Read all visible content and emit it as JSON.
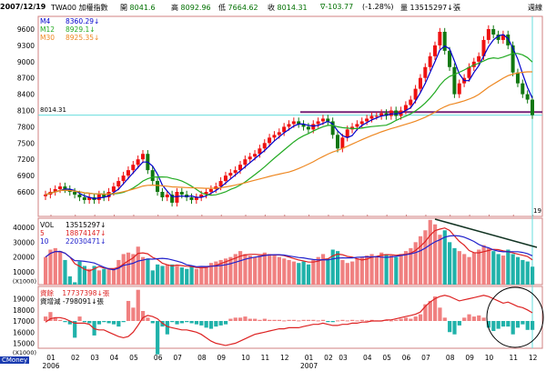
{
  "header": {
    "date": "2007/12/19",
    "symbol": "TWA00 加權指數",
    "open_label": "開",
    "open": "8041.6",
    "high_label": "高",
    "high": "8092.96",
    "low_label": "低",
    "low": "7664.62",
    "close_label": "收",
    "close": "8014.31",
    "change": "∇-103.77",
    "change_pct": "(-1.28%)",
    "vol_label": "量",
    "volume": "13515297↓張",
    "mode": "週線"
  },
  "price_legend": [
    {
      "name": "M4",
      "value": "8360.29↓",
      "color": "#0000cc"
    },
    {
      "name": "M12",
      "value": "8929.1↓",
      "color": "#22aa22"
    },
    {
      "name": "M30",
      "value": "8925.35↓",
      "color": "#ee8822"
    }
  ],
  "vol_legend": [
    {
      "name": "VOL",
      "value": "13515297↓",
      "color": "#000000"
    },
    {
      "name": "5",
      "value": "18874147↓",
      "color": "#dd2222"
    },
    {
      "name": "10",
      "value": "22030471↓",
      "color": "#2222cc"
    }
  ],
  "margin_legend": [
    {
      "name": "資餘",
      "value": "17737398↓張",
      "color": "#dd2222"
    },
    {
      "name": "資增減",
      "value": "-798091↓張",
      "color": "#000000"
    }
  ],
  "last_price_label": "8014.31",
  "cursor_label": "19",
  "brand": "CMoney",
  "colors": {
    "up": "#ee1111",
    "down": "#117711",
    "vol_up": "#f08080",
    "vol_down": "#20b2aa",
    "frame": "#d08080"
  },
  "chart_data": {
    "type": "candlestick",
    "months": [
      "01",
      "02",
      "03",
      "04",
      "05",
      "06",
      "07",
      "08",
      "09",
      "10",
      "11",
      "12",
      "01",
      "02",
      "03",
      "04",
      "05",
      "06",
      "07",
      "08",
      "09",
      "10",
      "11",
      "12"
    ],
    "weeks_per_month": [
      5,
      4,
      4,
      4,
      5,
      4,
      5,
      4,
      5,
      4,
      4,
      5,
      4,
      3,
      5,
      4,
      4,
      4,
      5,
      4,
      4,
      5,
      4,
      2
    ],
    "years": [
      "2006",
      "2007"
    ],
    "price_ticks": [
      6600,
      6900,
      7200,
      7500,
      7800,
      8100,
      8400,
      8700,
      9000,
      9300,
      9600
    ],
    "vol_ticks": [
      10000,
      20000,
      30000,
      40000
    ],
    "vol_unit": "(X1000)",
    "margin_ticks": [
      15000,
      16000,
      17000,
      18000,
      19000
    ],
    "margin_unit": "(X1000)",
    "close": [
      6550,
      6600,
      6650,
      6700,
      6650,
      6600,
      6550,
      6500,
      6450,
      6500,
      6450,
      6550,
      6500,
      6600,
      6700,
      6800,
      6900,
      7000,
      7100,
      7200,
      7300,
      7000,
      6800,
      6600,
      6500,
      6550,
      6400,
      6600,
      6550,
      6500,
      6450,
      6500,
      6550,
      6600,
      6650,
      6700,
      6800,
      6900,
      6950,
      7000,
      7100,
      7200,
      7250,
      7300,
      7400,
      7500,
      7600,
      7650,
      7700,
      7800,
      7850,
      7900,
      7850,
      7800,
      7750,
      7850,
      7900,
      7950,
      7900,
      7650,
      7400,
      7600,
      7750,
      7800,
      7850,
      7900,
      7950,
      8000,
      8000,
      8050,
      8000,
      8100,
      8000,
      8100,
      8200,
      8300,
      8500,
      8700,
      8900,
      9100,
      9300,
      9550,
      9200,
      8900,
      8400,
      8600,
      8700,
      8900,
      9000,
      9100,
      9400,
      9600,
      9500,
      9400,
      9500,
      9300,
      8800,
      8600,
      8400,
      8300,
      8014.31
    ],
    "volume": [
      20000,
      25000,
      26000,
      24000,
      18000,
      7000,
      3000,
      17000,
      14000,
      12000,
      14000,
      11000,
      12000,
      12000,
      12000,
      18000,
      22000,
      23000,
      22000,
      27000,
      20000,
      19000,
      11000,
      15000,
      14000,
      15000,
      15000,
      14000,
      13000,
      12000,
      14000,
      12000,
      13000,
      14000,
      16000,
      17000,
      18000,
      19000,
      20000,
      22000,
      24000,
      22000,
      21000,
      20000,
      21000,
      23000,
      22000,
      21000,
      20000,
      19000,
      18000,
      17000,
      16000,
      17000,
      15000,
      18000,
      20000,
      22000,
      19000,
      25000,
      24000,
      18000,
      16000,
      17000,
      19000,
      20000,
      21000,
      22000,
      20000,
      23000,
      22000,
      21000,
      20000,
      22000,
      24000,
      26000,
      30000,
      34000,
      38000,
      45000,
      42000,
      35000,
      38000,
      30000,
      26000,
      24000,
      22000,
      20000,
      23000,
      25000,
      28000,
      26000,
      24000,
      22000,
      21000,
      25000,
      22000,
      20000,
      18000,
      17000,
      13515
    ],
    "margin_balance": [
      16900,
      17200,
      17300,
      17300,
      17200,
      17000,
      16800,
      16800,
      16800,
      16700,
      16300,
      16200,
      16200,
      16000,
      15800,
      15600,
      15500,
      15600,
      16000,
      16600,
      17300,
      17500,
      17400,
      17200,
      16800,
      16500,
      16400,
      16300,
      16200,
      16200,
      16100,
      16000,
      15800,
      15500,
      15200,
      15000,
      14900,
      14800,
      14900,
      15000,
      15200,
      15400,
      15600,
      15800,
      15900,
      16000,
      16100,
      16200,
      16300,
      16300,
      16400,
      16400,
      16400,
      16500,
      16600,
      16700,
      16700,
      16800,
      16700,
      16600,
      16600,
      16700,
      16700,
      16800,
      16800,
      16900,
      16900,
      17000,
      17000,
      17000,
      17100,
      17100,
      17200,
      17300,
      17400,
      17500,
      17600,
      17800,
      18300,
      18700,
      19000,
      19200,
      19300,
      19200,
      19000,
      18800,
      18900,
      19000,
      19100,
      19200,
      19300,
      19200,
      19000,
      18800,
      18600,
      18700,
      18500,
      18300,
      18200,
      18000,
      17737
    ],
    "margin_change": [
      400,
      800,
      300,
      100,
      -100,
      -300,
      -1500,
      400,
      -100,
      -200,
      -1300,
      -300,
      -100,
      -200,
      -300,
      -500,
      -100,
      1800,
      1200,
      2800,
      900,
      300,
      -200,
      -3000,
      -500,
      -1200,
      -100,
      -300,
      -200,
      -100,
      -200,
      -300,
      -400,
      -600,
      -700,
      -500,
      -400,
      -300,
      200,
      300,
      300,
      400,
      200,
      200,
      100,
      200,
      100,
      100,
      100,
      50,
      100,
      100,
      50,
      100,
      100,
      100,
      50,
      100,
      -100,
      -100,
      50,
      100,
      50,
      100,
      50,
      100,
      50,
      100,
      50,
      50,
      100,
      50,
      100,
      200,
      300,
      200,
      400,
      600,
      1500,
      1800,
      2200,
      1200,
      300,
      -1000,
      -1200,
      -400,
      300,
      600,
      400,
      500,
      300,
      -600,
      -900,
      -700,
      -500,
      -500,
      -1200,
      -600,
      -300,
      -800,
      -798
    ],
    "support_line": 8070
  }
}
